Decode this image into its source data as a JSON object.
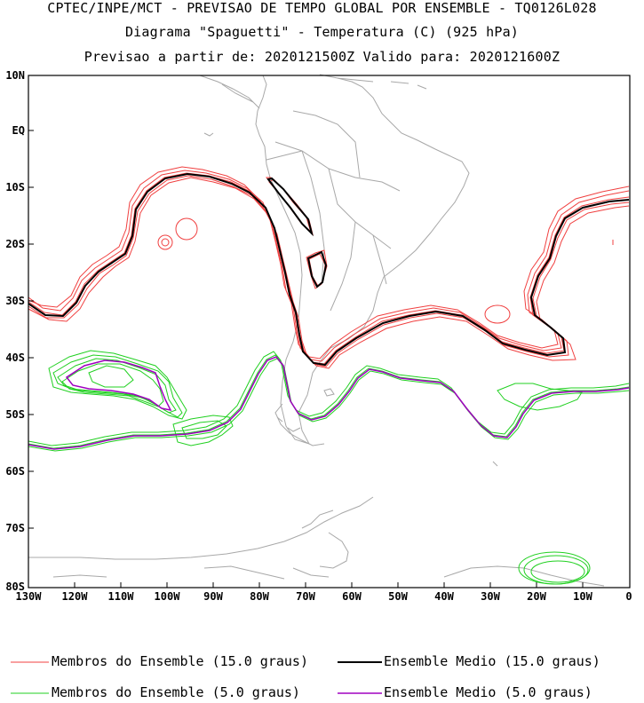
{
  "header": {
    "line1": "CPTEC/INPE/MCT - PREVISAO DE TEMPO GLOBAL POR ENSEMBLE - TQ0126L028",
    "line2": "Diagrama \"Spaguetti\" - Temperatura (C) (925 hPa)",
    "line3": "Previsao a partir de: 2020121500Z  Valido para: 2020121600Z"
  },
  "axes": {
    "lat_labels": [
      "10N",
      "EQ",
      "10S",
      "20S",
      "30S",
      "40S",
      "50S",
      "60S",
      "70S",
      "80S"
    ],
    "lon_labels": [
      "130W",
      "120W",
      "110W",
      "100W",
      "90W",
      "80W",
      "70W",
      "60W",
      "50W",
      "40W",
      "30W",
      "20W",
      "10W",
      "0"
    ]
  },
  "legend": {
    "members_15": "Membros do Ensemble (15.0 graus)",
    "mean_15": "Ensemble Medio (15.0 graus)",
    "members_5": "Membros do Ensemble (5.0 graus)",
    "mean_5": "Ensemble Medio (5.0 graus)"
  },
  "colors": {
    "members_15": "#f04040",
    "mean_15": "#000000",
    "members_5": "#20d020",
    "mean_5": "#a000c0",
    "coast": "#a8a8a8"
  },
  "map_extent": {
    "lon_min": -130,
    "lon_max": 0,
    "lat_min": -80,
    "lat_max": 10
  }
}
